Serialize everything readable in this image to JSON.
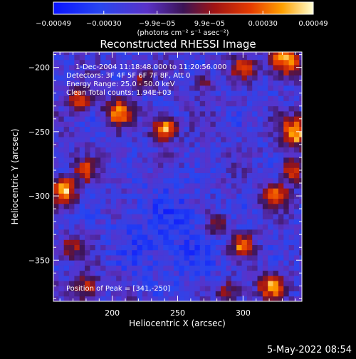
{
  "chart_data": {
    "type": "heatmap",
    "title": "Reconstructed RHESSI Image",
    "xlabel": "Heliocentric X (arcsec)",
    "ylabel": "Heliocentric Y (arcsec)",
    "xlim": [
      155,
      345
    ],
    "ylim": [
      -382,
      -188
    ],
    "x_ticks": [
      200,
      250,
      300
    ],
    "y_ticks": [
      -200,
      -250,
      -300,
      -350
    ],
    "x_tick_labels": [
      "200",
      "250",
      "300"
    ],
    "y_tick_labels": [
      "−200",
      "−250",
      "−300",
      "−350"
    ],
    "colorbar": {
      "range": [
        -0.00049,
        0.00049
      ],
      "ticks": [
        -0.00049,
        -0.0003,
        -9.9e-05,
        9.9e-05,
        0.0003,
        0.00049
      ],
      "tick_labels": [
        "−0.00049",
        "−0.00030",
        "−9.9e−05",
        "9.9e−05",
        "0.00030",
        "0.00049"
      ],
      "unit_label": "(photons cm⁻² s⁻¹ asec⁻²)"
    },
    "annotations": {
      "time_range": "1-Dec-2004 11:18:48.000 to 11:20:56.000",
      "detectors": "Detectors: 3F 4F 5F 6F 7F 8F, Att 0",
      "energy": "Energy Range: 25.0 - 50.0 keV",
      "clean": "Clean     Total counts: 1.94E+03",
      "peak": "Position of Peak = [341,-250]"
    },
    "peak": [
      341,
      -250
    ],
    "sources": [
      {
        "x": 240,
        "y": -248,
        "amp": 1.0,
        "s": 6
      },
      {
        "x": 205,
        "y": -235,
        "amp": 0.8,
        "s": 7
      },
      {
        "x": 222,
        "y": -210,
        "amp": 0.5,
        "s": 6
      },
      {
        "x": 175,
        "y": -225,
        "amp": 0.7,
        "s": 6
      },
      {
        "x": 163,
        "y": -295,
        "amp": 0.85,
        "s": 7
      },
      {
        "x": 180,
        "y": -280,
        "amp": 0.55,
        "s": 6
      },
      {
        "x": 168,
        "y": -340,
        "amp": 0.5,
        "s": 6
      },
      {
        "x": 180,
        "y": -372,
        "amp": 0.55,
        "s": 7
      },
      {
        "x": 332,
        "y": -195,
        "amp": 0.9,
        "s": 8
      },
      {
        "x": 300,
        "y": -200,
        "amp": 0.6,
        "s": 6
      },
      {
        "x": 341,
        "y": -250,
        "amp": 0.95,
        "s": 8
      },
      {
        "x": 325,
        "y": -300,
        "amp": 0.65,
        "s": 7
      },
      {
        "x": 338,
        "y": -280,
        "amp": 0.6,
        "s": 6
      },
      {
        "x": 280,
        "y": -322,
        "amp": 0.5,
        "s": 6
      },
      {
        "x": 300,
        "y": -338,
        "amp": 0.75,
        "s": 6
      },
      {
        "x": 322,
        "y": -370,
        "amp": 0.8,
        "s": 7
      },
      {
        "x": 290,
        "y": -375,
        "amp": 0.5,
        "s": 6
      },
      {
        "x": 270,
        "y": -212,
        "amp": 0.4,
        "s": 5
      }
    ]
  },
  "footer": {
    "date": "5-May-2022 08:54"
  }
}
